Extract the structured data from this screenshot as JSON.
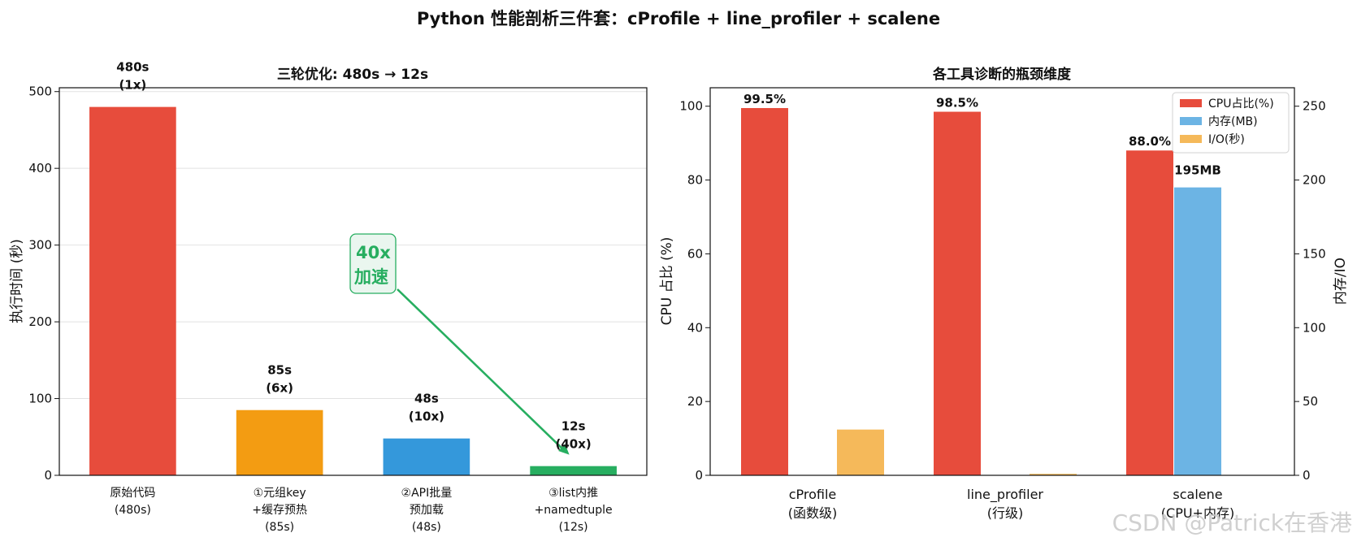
{
  "suptitle": "Python 性能剖析三件套：cProfile + line_profiler + scalene",
  "watermark": "CSDN @Patrick在香港",
  "chart_data": [
    {
      "type": "bar",
      "title": "三轮优化: 480s → 12s",
      "ylabel": "执行时间 (秒)",
      "ylim": [
        0,
        505
      ],
      "yticks": [
        "0",
        "100",
        "200",
        "300",
        "400",
        "500"
      ],
      "grid": "y",
      "categories": [
        [
          "原始代码",
          "(480s)"
        ],
        [
          "①元组key",
          "+缓存预热",
          "(85s)"
        ],
        [
          "②API批量",
          "预加载",
          "(48s)"
        ],
        [
          "③list内推",
          "+namedtuple",
          "(12s)"
        ]
      ],
      "values": [
        480,
        85,
        48,
        12
      ],
      "colors": [
        "#e74c3c",
        "#f39c12",
        "#3498db",
        "#27ae60"
      ],
      "data_labels": [
        [
          "480s",
          "(1x)"
        ],
        [
          "85s",
          "(6x)"
        ],
        [
          "48s",
          "(10x)"
        ],
        [
          "12s",
          "(40x)"
        ]
      ],
      "annotation": {
        "text": [
          "40x",
          "加速"
        ],
        "color": "#27ae60"
      }
    },
    {
      "type": "bar",
      "title": "各工具诊断的瓶颈维度",
      "ylabel": "CPU 占比 (%)",
      "ylabel_color": "#e74c3c",
      "y2label": "内存/IO",
      "y2label_color": "#3498db",
      "ylim": [
        0,
        105
      ],
      "yticks": [
        "0",
        "20",
        "40",
        "60",
        "80",
        "100"
      ],
      "y2lim": [
        0,
        262.5
      ],
      "y2ticks": [
        "0",
        "50",
        "100",
        "150",
        "200",
        "250"
      ],
      "categories": [
        [
          "cProfile",
          "(函数级)"
        ],
        [
          "line_profiler",
          "(行级)"
        ],
        [
          "scalene",
          "(CPU+内存)"
        ]
      ],
      "series": [
        {
          "name": "CPU占比(%)",
          "color": "#e74c3c",
          "axis": "left",
          "values": [
            99.5,
            98.5,
            88.0
          ],
          "labels": [
            "99.5%",
            "98.5%",
            "88.0%"
          ]
        },
        {
          "name": "内存(MB)",
          "color": "#6cb4e4",
          "axis": "right",
          "values": [
            0,
            0,
            195
          ],
          "labels": [
            "",
            "",
            "195MB"
          ],
          "label_color": "#3498db"
        },
        {
          "name": "I/O(秒)",
          "color": "#f5b95a",
          "axis": "right",
          "values": [
            31,
            1,
            0
          ],
          "labels": [
            "",
            "",
            ""
          ]
        }
      ],
      "legend": "top-right"
    }
  ]
}
